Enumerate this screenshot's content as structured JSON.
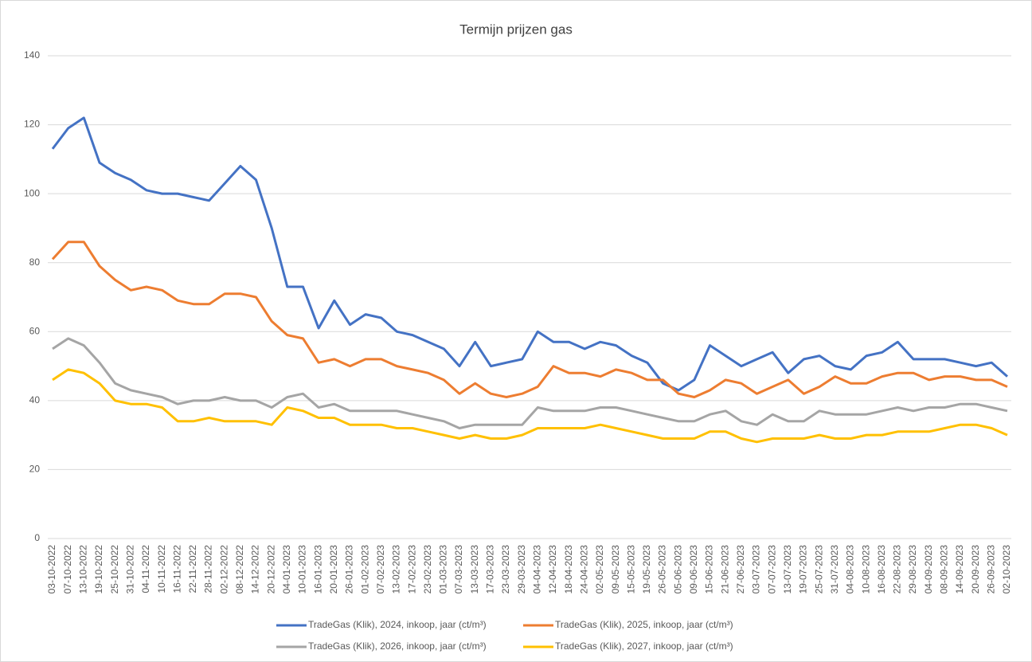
{
  "chart_data": {
    "type": "line",
    "title": "Termijn prijzen gas",
    "categories": [
      "03-10-2022",
      "07-10-2022",
      "13-10-2022",
      "19-10-2022",
      "25-10-2022",
      "31-10-2022",
      "04-11-2022",
      "10-11-2022",
      "16-11-2022",
      "22-11-2022",
      "28-11-2022",
      "02-12-2022",
      "08-12-2022",
      "14-12-2022",
      "20-12-2022",
      "04-01-2023",
      "10-01-2023",
      "16-01-2023",
      "20-01-2023",
      "26-01-2023",
      "01-02-2023",
      "07-02-2023",
      "13-02-2023",
      "17-02-2023",
      "23-02-2023",
      "01-03-2023",
      "07-03-2023",
      "13-03-2023",
      "17-03-2023",
      "23-03-2023",
      "29-03-2023",
      "04-04-2023",
      "12-04-2023",
      "18-04-2023",
      "24-04-2023",
      "02-05-2023",
      "09-05-2023",
      "15-05-2023",
      "19-05-2023",
      "26-05-2023",
      "05-06-2023",
      "09-06-2023",
      "15-06-2023",
      "21-06-2023",
      "27-06-2023",
      "03-07-2023",
      "07-07-2023",
      "13-07-2023",
      "19-07-2023",
      "25-07-2023",
      "31-07-2023",
      "04-08-2023",
      "10-08-2023",
      "16-08-2023",
      "22-08-2023",
      "29-08-2023",
      "04-09-2023",
      "08-09-2023",
      "14-09-2023",
      "20-09-2023",
      "26-09-2023",
      "02-10-2023"
    ],
    "series": [
      {
        "name": "TradeGas (Klik), 2024, inkoop, jaar (ct/m³)",
        "color": "#4472c4",
        "values": [
          113,
          119,
          122,
          109,
          106,
          104,
          101,
          100,
          100,
          99,
          98,
          103,
          108,
          104,
          90,
          73,
          73,
          61,
          69,
          62,
          65,
          64,
          60,
          59,
          57,
          55,
          50,
          57,
          50,
          51,
          52,
          60,
          57,
          57,
          55,
          57,
          56,
          53,
          51,
          45,
          43,
          46,
          56,
          53,
          50,
          52,
          54,
          48,
          52,
          53,
          50,
          49,
          53,
          54,
          57,
          52,
          52,
          52,
          51,
          50,
          51,
          47
        ]
      },
      {
        "name": "TradeGas (Klik), 2025, inkoop, jaar (ct/m³)",
        "color": "#ed7d31",
        "values": [
          81,
          86,
          86,
          79,
          75,
          72,
          73,
          72,
          69,
          68,
          68,
          71,
          71,
          70,
          63,
          59,
          58,
          51,
          52,
          50,
          52,
          52,
          50,
          49,
          48,
          46,
          42,
          45,
          42,
          41,
          42,
          44,
          50,
          48,
          48,
          47,
          49,
          48,
          46,
          46,
          42,
          41,
          43,
          46,
          45,
          42,
          44,
          46,
          42,
          44,
          47,
          45,
          45,
          47,
          48,
          48,
          46,
          47,
          47,
          46,
          46,
          44
        ]
      },
      {
        "name": "TradeGas (Klik), 2026, inkoop, jaar (ct/m³)",
        "color": "#a5a5a5",
        "values": [
          55,
          58,
          56,
          51,
          45,
          43,
          42,
          41,
          39,
          40,
          40,
          41,
          40,
          40,
          38,
          41,
          42,
          38,
          39,
          37,
          37,
          37,
          37,
          36,
          35,
          34,
          32,
          33,
          33,
          33,
          33,
          38,
          37,
          37,
          37,
          38,
          38,
          37,
          36,
          35,
          34,
          34,
          36,
          37,
          34,
          33,
          36,
          34,
          34,
          37,
          36,
          36,
          36,
          37,
          38,
          37,
          38,
          38,
          39,
          39,
          38,
          37
        ]
      },
      {
        "name": "TradeGas (Klik), 2027, inkoop, jaar (ct/m³)",
        "color": "#ffc000",
        "values": [
          46,
          49,
          48,
          45,
          40,
          39,
          39,
          38,
          34,
          34,
          35,
          34,
          34,
          34,
          33,
          38,
          37,
          35,
          35,
          33,
          33,
          33,
          32,
          32,
          31,
          30,
          29,
          30,
          29,
          29,
          30,
          32,
          32,
          32,
          32,
          33,
          32,
          31,
          30,
          29,
          29,
          29,
          31,
          31,
          29,
          28,
          29,
          29,
          29,
          30,
          29,
          29,
          30,
          30,
          31,
          31,
          31,
          32,
          33,
          33,
          32,
          30
        ]
      }
    ],
    "ylim": [
      0,
      140
    ],
    "yticks": [
      0,
      20,
      40,
      60,
      80,
      100,
      120,
      140
    ],
    "grid": true,
    "legend": "bottom"
  }
}
